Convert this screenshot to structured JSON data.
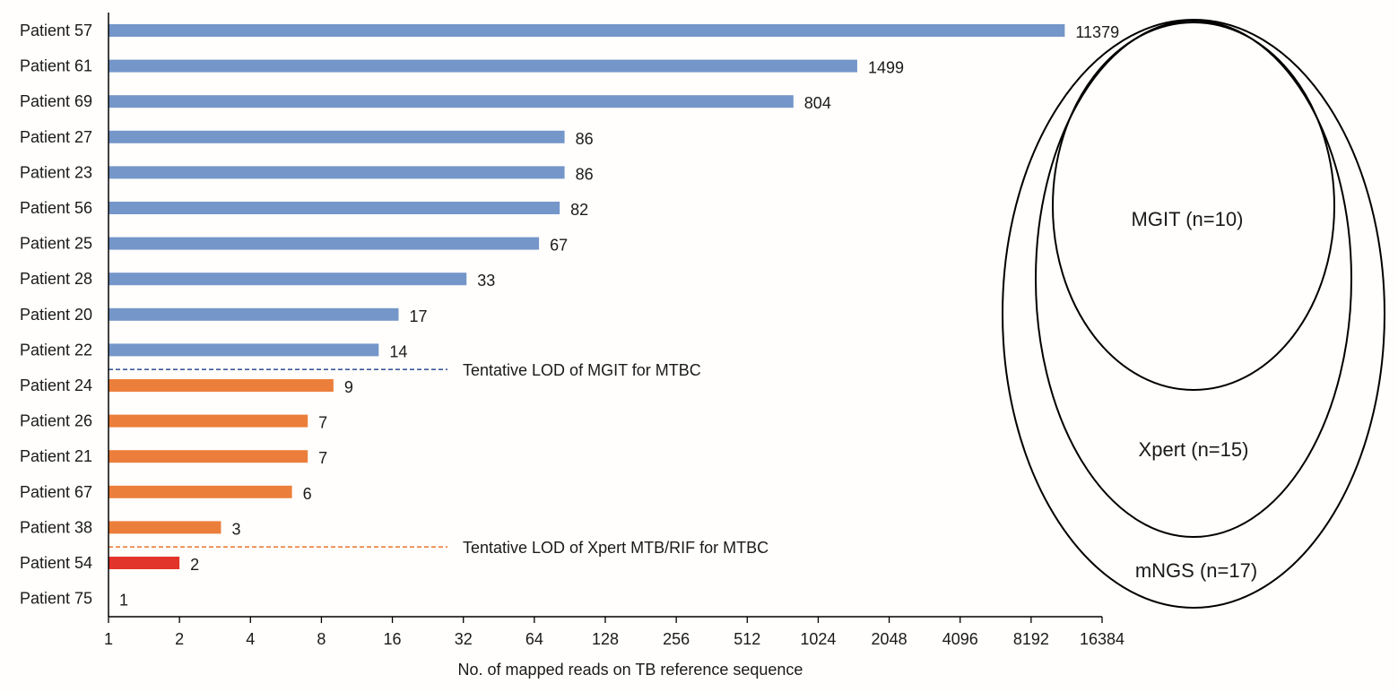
{
  "chart_data": {
    "type": "bar",
    "orientation": "horizontal",
    "xscale": "log2",
    "xlabel": "No. of mapped reads on TB reference sequence",
    "ylabel": "",
    "xlim": [
      1,
      16384
    ],
    "xticks": [
      "1",
      "2",
      "4",
      "8",
      "16",
      "32",
      "64",
      "128",
      "256",
      "512",
      "1024",
      "2048",
      "4096",
      "8192",
      "16384"
    ],
    "categories": [
      "Patient 57",
      "Patient 61",
      "Patient 69",
      "Patient 27",
      "Patient 23",
      "Patient 56",
      "Patient 25",
      "Patient 28",
      "Patient 20",
      "Patient 22",
      "Patient 24",
      "Patient 26",
      "Patient 21",
      "Patient 67",
      "Patient 38",
      "Patient 54",
      "Patient 75"
    ],
    "values": [
      11379,
      1499,
      804,
      86,
      86,
      82,
      67,
      33,
      17,
      14,
      9,
      7,
      7,
      6,
      3,
      2,
      1
    ],
    "bar_groups": [
      "mgit",
      "mgit",
      "mgit",
      "mgit",
      "mgit",
      "mgit",
      "mgit",
      "mgit",
      "mgit",
      "mgit",
      "xpert",
      "xpert",
      "xpert",
      "xpert",
      "xpert",
      "mngs",
      "mngs"
    ],
    "colors": {
      "mgit": "#7496c9",
      "xpert": "#ec7e3b",
      "mngs": "#e3342b",
      "mgit_line": "#3a5a9a",
      "xpert_line": "#ec7e3b"
    },
    "thresholds": [
      {
        "label": "Tentative LOD of MGIT for MTBC",
        "after_index": 9,
        "group": "mgit_line"
      },
      {
        "label": "Tentative LOD of Xpert MTB/RIF for MTBC",
        "after_index": 14,
        "group": "xpert_line"
      }
    ],
    "venn": [
      {
        "label": "MGIT (n=10)"
      },
      {
        "label": "Xpert (n=15)"
      },
      {
        "label": "mNGS (n=17)"
      }
    ]
  }
}
